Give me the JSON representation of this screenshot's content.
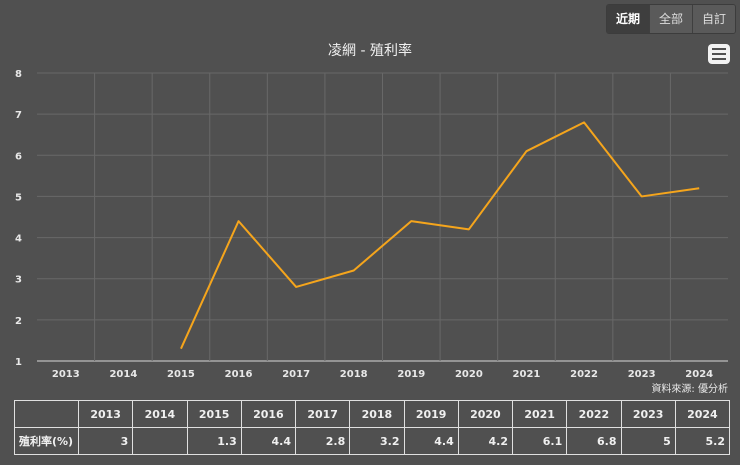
{
  "range_buttons": [
    {
      "label": "近期",
      "active": true
    },
    {
      "label": "全部",
      "active": false
    },
    {
      "label": "自訂",
      "active": false
    }
  ],
  "source": "資料來源: 優分析",
  "chart_data": {
    "type": "line",
    "title": "凌網 - 殖利率",
    "categories": [
      "2013",
      "2014",
      "2015",
      "2016",
      "2017",
      "2018",
      "2019",
      "2020",
      "2021",
      "2022",
      "2023",
      "2024"
    ],
    "series": [
      {
        "name": "",
        "color": "#f5a51c",
        "values": [
          3,
          null,
          1.3,
          4.4,
          2.8,
          3.2,
          4.4,
          4.2,
          6.1,
          6.8,
          5,
          5.2
        ]
      }
    ],
    "ylim": [
      1,
      8
    ],
    "yticks": [
      "1",
      "2",
      "3",
      "4",
      "5",
      "6",
      "7",
      "8"
    ],
    "grid": true,
    "xlabel": "",
    "ylabel": ""
  },
  "table": {
    "row_label": "殖利率(%)",
    "cells": [
      "3",
      "",
      "1.3",
      "4.4",
      "2.8",
      "3.2",
      "4.4",
      "4.2",
      "6.1",
      "6.8",
      "5",
      "5.2"
    ]
  }
}
